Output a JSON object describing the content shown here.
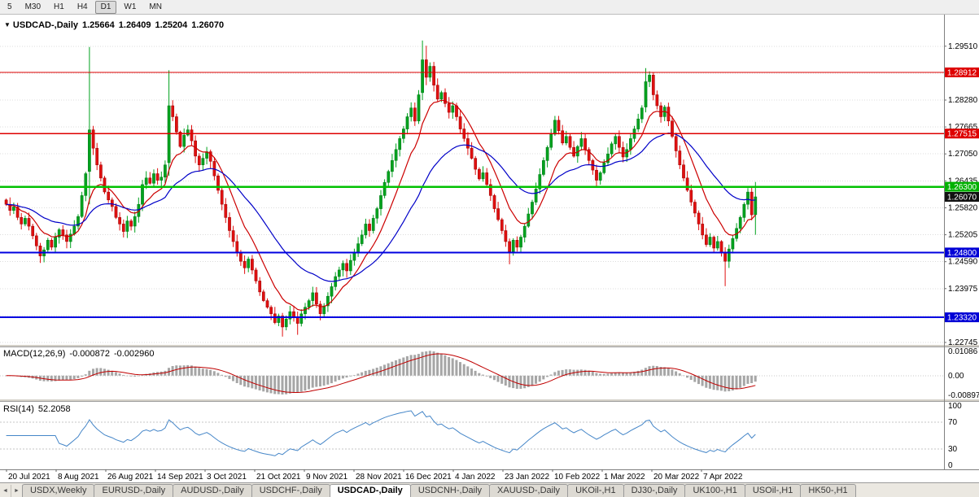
{
  "toolbar": {
    "timeframes": [
      "5",
      "M30",
      "H1",
      "H4",
      "D1",
      "W1",
      "MN"
    ],
    "active": "D1"
  },
  "header": {
    "collapse_glyph": "▼",
    "symbol_title": "USDCAD-,Daily",
    "open": "1.25664",
    "high": "1.26409",
    "low": "1.25204",
    "close": "1.26070"
  },
  "macd": {
    "label": "MACD(12,26,9)",
    "value_main": "-0.000872",
    "value_signal": "-0.002960",
    "axis_labels": [
      {
        "text": "0.01086",
        "value": 0.01086
      },
      {
        "text": "0.00",
        "value": 0
      },
      {
        "text": "-0.00897",
        "value": -0.00897
      }
    ]
  },
  "rsi": {
    "label": "RSI(14)",
    "value": "52.2058",
    "axis_labels": [
      {
        "text": "100",
        "value": 100
      },
      {
        "text": "70",
        "value": 70
      },
      {
        "text": "30",
        "value": 30
      },
      {
        "text": "0",
        "value": 0
      }
    ],
    "levels": [
      70,
      30
    ]
  },
  "price_axis": {
    "ticks": [
      1.2951,
      1.28895,
      1.2828,
      1.27665,
      1.2705,
      1.26435,
      1.2582,
      1.25205,
      1.2459,
      1.23975,
      1.2336,
      1.22745
    ],
    "line_labels": [
      {
        "text": "1.28912",
        "value": 1.28912,
        "bg": "#DE0000",
        "fg": "#FFFFFF"
      },
      {
        "text": "1.27515",
        "value": 1.27515,
        "bg": "#DE0000",
        "fg": "#FFFFFF"
      },
      {
        "text": "1.26300",
        "value": 1.263,
        "bg": "#00B100",
        "fg": "#FFFFFF"
      },
      {
        "text": "1.26070",
        "value": 1.2607,
        "bg": "#111111",
        "fg": "#FFFFFF"
      },
      {
        "text": "1.24800",
        "value": 1.248,
        "bg": "#0000D6",
        "fg": "#FFFFFF"
      },
      {
        "text": "1.23320",
        "value": 1.2332,
        "bg": "#0000D6",
        "fg": "#FFFFFF"
      }
    ]
  },
  "hlines": [
    {
      "value": 1.28912,
      "color": "#DE0000",
      "width": 1.4
    },
    {
      "value": 1.27515,
      "color": "#DE0000",
      "width": 1.4
    },
    {
      "value": 1.263,
      "color": "#00C000",
      "width": 2.5
    },
    {
      "value": 1.248,
      "color": "#0000E0",
      "width": 2
    },
    {
      "value": 1.2332,
      "color": "#0000E0",
      "width": 2
    }
  ],
  "date_axis": [
    "20 Jul 2021",
    "8 Aug 2021",
    "26 Aug 2021",
    "14 Sep 2021",
    "3 Oct 2021",
    "21 Oct 2021",
    "9 Nov 2021",
    "28 Nov 2021",
    "16 Dec 2021",
    "4 Jan 2022",
    "23 Jan 2022",
    "10 Feb 2022",
    "1 Mar 2022",
    "20 Mar 2022",
    "7 Apr 2022"
  ],
  "tab_bar": {
    "scroll_left": "◄",
    "scroll_right": "►",
    "tabs": [
      "USDX,Weekly",
      "EURUSD-,Daily",
      "AUDUSD-,Daily",
      "USDCHF-,Daily",
      "USDCAD-,Daily",
      "USDCNH-,Daily",
      "XAUUSD-,Daily",
      "UKOil-,H1",
      "DJ30-,Daily",
      "UK100-,H1",
      "USOil-,H1",
      "HK50-,H1"
    ],
    "active": "USDCAD-,Daily"
  },
  "chart_data": {
    "type": "candlestick",
    "symbol": "USDCAD",
    "timeframe": "Daily",
    "ylim": [
      1.2269,
      1.3023
    ],
    "first_open": 1.26,
    "closes": [
      1.259,
      1.2576,
      1.2584,
      1.256,
      1.2545,
      1.2558,
      1.254,
      1.2518,
      1.2495,
      1.2472,
      1.2486,
      1.2508,
      1.2492,
      1.2515,
      1.2532,
      1.252,
      1.2505,
      1.2522,
      1.254,
      1.2562,
      1.261,
      1.266,
      1.276,
      1.2718,
      1.268,
      1.265,
      1.2618,
      1.26,
      1.2585,
      1.256,
      1.2545,
      1.2528,
      1.2552,
      1.254,
      1.2562,
      1.259,
      1.2635,
      1.265,
      1.2638,
      1.266,
      1.2645,
      1.2652,
      1.268,
      1.2815,
      1.279,
      1.2755,
      1.2722,
      1.2748,
      1.276,
      1.2735,
      1.27,
      1.268,
      1.2695,
      1.271,
      1.2688,
      1.2655,
      1.2622,
      1.259,
      1.256,
      1.253,
      1.2505,
      1.248,
      1.246,
      1.2445,
      1.2465,
      1.244,
      1.2415,
      1.239,
      1.237,
      1.2355,
      1.234,
      1.232,
      1.2335,
      1.231,
      1.2328,
      1.2345,
      1.2332,
      1.2318,
      1.234,
      1.2355,
      1.237,
      1.2388,
      1.2362,
      1.234,
      1.2358,
      1.238,
      1.2402,
      1.2425,
      1.244,
      1.2455,
      1.2438,
      1.2462,
      1.248,
      1.25,
      1.252,
      1.2545,
      1.253,
      1.2558,
      1.258,
      1.261,
      1.264,
      1.2665,
      1.269,
      1.2715,
      1.274,
      1.2762,
      1.279,
      1.281,
      1.278,
      1.284,
      1.292,
      1.288,
      1.2905,
      1.2862,
      1.283,
      1.2845,
      1.282,
      1.28,
      1.2815,
      1.279,
      1.2762,
      1.274,
      1.2718,
      1.2695,
      1.267,
      1.2648,
      1.2662,
      1.2635,
      1.261,
      1.258,
      1.2555,
      1.253,
      1.2505,
      1.2482,
      1.2508,
      1.2492,
      1.2515,
      1.254,
      1.2568,
      1.2595,
      1.2625,
      1.2658,
      1.269,
      1.272,
      1.275,
      1.2782,
      1.2758,
      1.273,
      1.2745,
      1.272,
      1.27,
      1.2722,
      1.274,
      1.2715,
      1.269,
      1.2668,
      1.2645,
      1.2662,
      1.2685,
      1.2705,
      1.2728,
      1.2745,
      1.272,
      1.2698,
      1.2715,
      1.274,
      1.2762,
      1.2785,
      1.281,
      1.287,
      1.2885,
      1.284,
      1.2815,
      1.279,
      1.2812,
      1.278,
      1.2745,
      1.2712,
      1.268,
      1.265,
      1.2622,
      1.2595,
      1.257,
      1.2545,
      1.252,
      1.2498,
      1.2515,
      1.249,
      1.2505,
      1.248,
      1.246,
      1.2488,
      1.2512,
      1.2535,
      1.256,
      1.259,
      1.2618,
      1.2566,
      1.2607
    ],
    "ohlc_overrides": {
      "22": [
        1.2665,
        1.2949,
        1.259,
        1.276
      ],
      "43": [
        1.2685,
        1.2896,
        1.2655,
        1.2815
      ],
      "73": [
        1.2335,
        1.2342,
        1.2288,
        1.231
      ],
      "77": [
        1.2332,
        1.2345,
        1.2292,
        1.2318
      ],
      "110": [
        1.2845,
        1.2964,
        1.2828,
        1.292
      ],
      "111": [
        1.292,
        1.2952,
        1.2862,
        1.288
      ],
      "133": [
        1.2505,
        1.2512,
        1.2453,
        1.2482
      ],
      "169": [
        1.2812,
        1.2901,
        1.28,
        1.287
      ],
      "190": [
        1.248,
        1.2492,
        1.2403,
        1.246
      ],
      "198": [
        1.25664,
        1.26409,
        1.25204,
        1.2607
      ]
    },
    "indicators": {
      "ma_fast": {
        "type": "EMA",
        "period": 10,
        "color": "#CC0000"
      },
      "ma_slow": {
        "type": "EMA",
        "period": 30,
        "color": "#0000C8"
      },
      "macd": {
        "fast": 12,
        "slow": 26,
        "signal": 9,
        "ylim": [
          -0.0105,
          0.0125
        ],
        "hist_color": "#A6A6A6",
        "signal_color": "#C00000"
      },
      "rsi": {
        "period": 14,
        "ylim": [
          0,
          100
        ],
        "color": "#4586C8"
      }
    },
    "up_color": "#00A21E",
    "down_color": "#E01010"
  }
}
